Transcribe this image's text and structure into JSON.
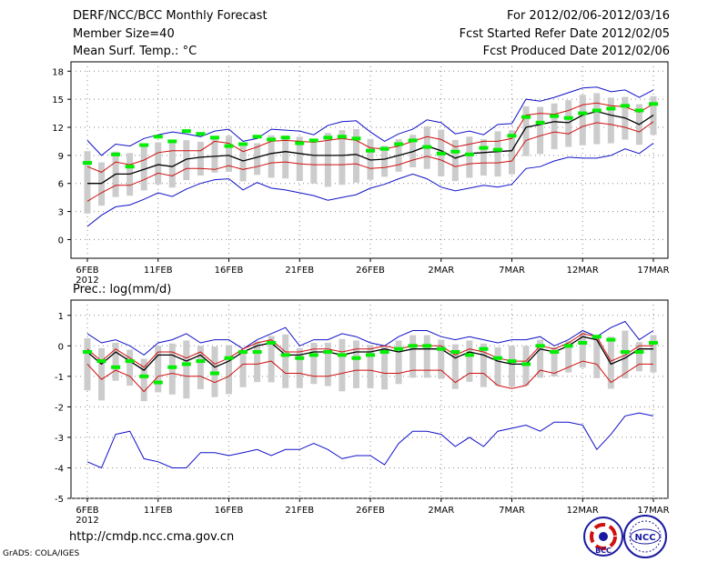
{
  "header": {
    "title": "DERF/NCC/BCC Monthly Forecast",
    "member_size": "Member Size=40",
    "variable_top": "Mean Surf. Temp.: °C",
    "period": "For 2012/02/06-2012/03/16",
    "fcst_started": "Fcst Started Refer Date 2012/02/05",
    "fcst_produced": "Fcst Produced Date 2012/02/06"
  },
  "footer": {
    "url": "http://cmdp.ncc.cma.gov.cn",
    "software": "GrADS: COLA/IGES",
    "logo_bcc": "BCC",
    "logo_ncc": "NCC"
  },
  "colors": {
    "ensemble_mean": "#000000",
    "envelope": "#1010c8",
    "spread": "#d01010",
    "climatology": "#00ee00",
    "box": "#cccccc",
    "grid": "#888888"
  },
  "chart_data": [
    {
      "type": "line",
      "title": "Mean Surf. Temp.: °C",
      "x_tick_labels": [
        "6FEB",
        "11FEB",
        "16FEB",
        "21FEB",
        "26FEB",
        "2MAR",
        "7MAR",
        "12MAR",
        "17MAR"
      ],
      "x_year_label": "2012",
      "xlim": [
        0,
        40
      ],
      "ylim": [
        -2,
        19
      ],
      "y_ticks": [
        0,
        3,
        6,
        9,
        12,
        15,
        18
      ],
      "series": [
        {
          "name": "max",
          "color": "#1010c8",
          "values": [
            10.6,
            9.0,
            10.2,
            10.0,
            10.8,
            11.2,
            11.5,
            11.3,
            11.0,
            11.6,
            11.8,
            10.5,
            10.8,
            11.8,
            11.7,
            11.6,
            11.2,
            12.2,
            12.6,
            12.7,
            11.5,
            10.5,
            11.3,
            11.8,
            12.8,
            12.5,
            11.3,
            11.6,
            11.2,
            12.3,
            12.4,
            15.0,
            14.8,
            15.2,
            15.7,
            16.2,
            16.3,
            15.8,
            16.0,
            15.2,
            16.0
          ]
        },
        {
          "name": "upper",
          "color": "#d01010",
          "values": [
            7.8,
            7.2,
            8.3,
            8.0,
            8.5,
            9.3,
            9.5,
            9.5,
            9.5,
            10.5,
            10.3,
            9.4,
            9.9,
            10.5,
            10.6,
            10.5,
            10.4,
            10.6,
            10.8,
            10.6,
            9.8,
            9.7,
            10.0,
            10.5,
            11.0,
            10.7,
            9.9,
            10.2,
            10.5,
            10.5,
            10.8,
            13.3,
            13.5,
            13.4,
            13.8,
            14.4,
            14.6,
            14.3,
            14.2,
            13.6,
            14.5
          ]
        },
        {
          "name": "mean",
          "color": "#000000",
          "values": [
            6.0,
            6.0,
            7.0,
            7.0,
            7.5,
            8.0,
            7.8,
            8.6,
            8.8,
            8.9,
            9.0,
            8.4,
            8.8,
            9.2,
            9.4,
            9.2,
            9.0,
            9.0,
            9.0,
            9.1,
            8.5,
            8.6,
            9.0,
            9.4,
            10.0,
            9.5,
            8.7,
            9.2,
            9.3,
            9.4,
            9.5,
            12.0,
            12.3,
            12.6,
            12.5,
            13.3,
            13.7,
            13.3,
            13.0,
            12.3,
            13.3
          ]
        },
        {
          "name": "lower",
          "color": "#d01010",
          "values": [
            4.1,
            5.0,
            5.8,
            5.8,
            6.4,
            7.1,
            6.8,
            7.6,
            7.6,
            7.5,
            7.9,
            7.5,
            7.8,
            8.2,
            8.3,
            8.1,
            8.0,
            8.0,
            8.0,
            8.1,
            7.6,
            7.7,
            8.0,
            8.5,
            8.9,
            8.5,
            7.8,
            8.1,
            8.2,
            8.2,
            8.4,
            10.6,
            11.1,
            11.5,
            11.3,
            12.1,
            12.5,
            12.3,
            12.0,
            11.5,
            12.6
          ]
        },
        {
          "name": "min",
          "color": "#1010c8",
          "values": [
            1.4,
            2.6,
            3.5,
            3.7,
            4.3,
            5.0,
            4.6,
            5.4,
            6.0,
            6.4,
            6.5,
            5.3,
            6.1,
            5.5,
            5.3,
            5.0,
            4.7,
            4.2,
            4.5,
            4.8,
            5.5,
            5.9,
            6.5,
            7.0,
            6.5,
            5.6,
            5.2,
            5.5,
            5.8,
            5.6,
            5.9,
            7.6,
            7.8,
            8.4,
            8.8,
            8.7,
            8.7,
            9.0,
            9.7,
            9.2,
            10.3
          ]
        },
        {
          "name": "climatology",
          "color": "#00ee00",
          "values": [
            8.2,
            null,
            9.1,
            7.8,
            10.1,
            11.0,
            10.5,
            11.6,
            11.3,
            10.9,
            10.0,
            10.2,
            11.0,
            10.7,
            10.9,
            10.3,
            10.6,
            10.9,
            11.0,
            10.8,
            9.5,
            9.7,
            10.2,
            10.6,
            9.9,
            9.2,
            9.4,
            9.1,
            9.8,
            9.6,
            11.1,
            13.1,
            12.5,
            13.2,
            13.0,
            13.5,
            13.8,
            14.0,
            14.3,
            13.8,
            14.5
          ]
        }
      ]
    },
    {
      "type": "line",
      "title": "Prec.: log(mm/d)",
      "x_tick_labels": [
        "6FEB",
        "11FEB",
        "16FEB",
        "21FEB",
        "26FEB",
        "2MAR",
        "7MAR",
        "12MAR",
        "17MAR"
      ],
      "x_year_label": "2012",
      "xlim": [
        0,
        40
      ],
      "ylim": [
        -5,
        1.5
      ],
      "y_ticks": [
        -5,
        -4,
        -3,
        -2,
        -1,
        0,
        1
      ],
      "series": [
        {
          "name": "max",
          "color": "#1010c8",
          "values": [
            0.4,
            0.1,
            0.2,
            0.0,
            -0.3,
            0.1,
            0.2,
            0.4,
            0.1,
            0.2,
            0.2,
            -0.1,
            0.2,
            0.4,
            0.6,
            0.0,
            0.2,
            0.2,
            0.4,
            0.3,
            0.1,
            0.0,
            0.3,
            0.5,
            0.5,
            0.3,
            0.2,
            0.3,
            0.2,
            0.1,
            0.2,
            0.2,
            0.3,
            0.0,
            0.2,
            0.5,
            0.3,
            0.6,
            0.8,
            0.2,
            0.5
          ]
        },
        {
          "name": "mean",
          "color": "#000000",
          "values": [
            -0.2,
            -0.6,
            -0.2,
            -0.5,
            -0.8,
            -0.3,
            -0.3,
            -0.5,
            -0.3,
            -0.7,
            -0.5,
            -0.2,
            0.0,
            0.1,
            -0.3,
            -0.3,
            -0.2,
            -0.2,
            -0.3,
            -0.2,
            -0.2,
            -0.1,
            -0.2,
            -0.1,
            -0.1,
            -0.1,
            -0.4,
            -0.2,
            -0.3,
            -0.5,
            -0.6,
            -0.6,
            -0.1,
            -0.2,
            0.0,
            0.3,
            0.2,
            -0.6,
            -0.4,
            -0.1,
            -0.1
          ]
        },
        {
          "name": "upper",
          "color": "#d01010",
          "values": [
            -0.1,
            -0.5,
            -0.1,
            -0.4,
            -0.7,
            -0.2,
            -0.2,
            -0.4,
            -0.2,
            -0.6,
            -0.4,
            -0.1,
            0.1,
            0.2,
            -0.2,
            -0.2,
            -0.1,
            -0.1,
            -0.2,
            -0.1,
            -0.1,
            0.0,
            -0.1,
            0.0,
            0.0,
            0.0,
            -0.3,
            -0.1,
            -0.2,
            -0.4,
            -0.5,
            -0.5,
            0.0,
            -0.1,
            0.1,
            0.4,
            0.3,
            -0.5,
            -0.3,
            0.0,
            0.0
          ]
        },
        {
          "name": "lower",
          "color": "#d01010",
          "values": [
            -0.6,
            -1.1,
            -0.8,
            -1.0,
            -1.5,
            -1.0,
            -0.9,
            -1.0,
            -1.0,
            -1.2,
            -1.0,
            -0.6,
            -0.6,
            -0.5,
            -0.9,
            -0.9,
            -1.0,
            -1.0,
            -0.9,
            -0.8,
            -0.8,
            -0.9,
            -0.9,
            -0.8,
            -0.8,
            -0.8,
            -1.2,
            -0.9,
            -0.9,
            -1.3,
            -1.4,
            -1.3,
            -0.8,
            -0.9,
            -0.7,
            -0.5,
            -0.6,
            -1.2,
            -0.9,
            -0.6,
            -0.6
          ]
        },
        {
          "name": "min",
          "color": "#1010c8",
          "values": [
            -3.8,
            -4.0,
            -2.9,
            -2.8,
            -3.7,
            -3.8,
            -4.0,
            -4.0,
            -3.5,
            -3.5,
            -3.6,
            -3.5,
            -3.4,
            -3.6,
            -3.4,
            -3.4,
            -3.2,
            -3.4,
            -3.7,
            -3.6,
            -3.6,
            -3.9,
            -3.2,
            -2.8,
            -2.8,
            -2.9,
            -3.3,
            -3.0,
            -3.3,
            -2.8,
            -2.7,
            -2.6,
            -2.8,
            -2.5,
            -2.5,
            -2.6,
            -3.4,
            -2.9,
            -2.3,
            -2.2,
            -2.3
          ]
        },
        {
          "name": "climatology",
          "color": "#00ee00",
          "values": [
            -0.2,
            -0.5,
            -0.7,
            -0.5,
            -1.0,
            -1.2,
            -0.7,
            -0.6,
            -0.5,
            -0.9,
            -0.4,
            -0.2,
            -0.2,
            0.1,
            -0.3,
            -0.4,
            -0.3,
            -0.2,
            -0.3,
            -0.4,
            -0.3,
            -0.2,
            -0.1,
            0.0,
            0.0,
            -0.1,
            -0.2,
            -0.3,
            -0.1,
            -0.4,
            -0.5,
            -0.6,
            0.0,
            -0.2,
            0.0,
            0.1,
            0.3,
            0.2,
            -0.2,
            -0.2,
            0.1
          ]
        }
      ]
    }
  ]
}
